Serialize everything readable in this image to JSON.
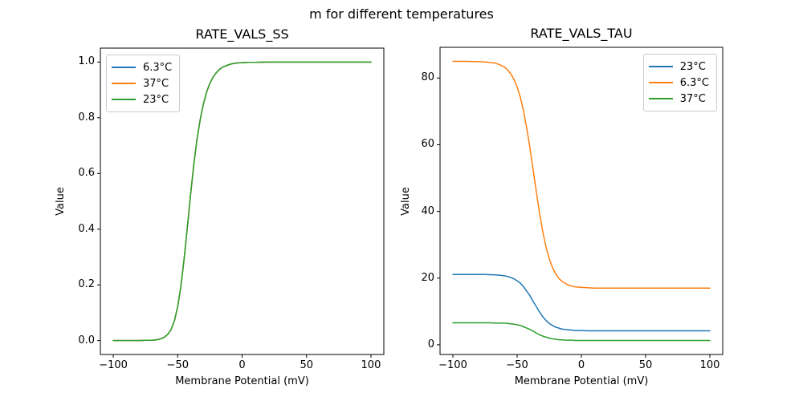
{
  "figure": {
    "suptitle": "m for different temperatures",
    "background": "#ffffff",
    "text_color": "#000000",
    "spine_color": "#000000"
  },
  "chart_data": [
    {
      "type": "line",
      "title": "RATE_VALS_SS",
      "xlabel": "Membrane Potential (mV)",
      "ylabel": "Value",
      "grid": false,
      "legend_position": "upper left",
      "xlim": [
        -110,
        110
      ],
      "ylim": [
        -0.05,
        1.05
      ],
      "xticks": [
        -100,
        -50,
        0,
        50,
        100
      ],
      "xtick_labels": [
        "−100",
        "−50",
        "0",
        "50",
        "100"
      ],
      "yticks": [
        0.0,
        0.2,
        0.4,
        0.6,
        0.8,
        1.0
      ],
      "ytick_labels": [
        "0.0",
        "0.2",
        "0.4",
        "0.6",
        "0.8",
        "1.0"
      ],
      "x": [
        -100,
        -90,
        -80,
        -75,
        -70,
        -67.5,
        -65,
        -62.5,
        -60,
        -57.5,
        -55,
        -52.5,
        -50,
        -47.5,
        -45,
        -42.5,
        -40,
        -37.5,
        -35,
        -32.5,
        -30,
        -27.5,
        -25,
        -22.5,
        -20,
        -17.5,
        -15,
        -12.5,
        -10,
        -7.5,
        -5,
        -2.5,
        0,
        5,
        10,
        20,
        40,
        60,
        80,
        100
      ],
      "series": [
        {
          "name": "6.3°C",
          "color": "#1f77b4",
          "values": [
            0,
            0,
            0,
            0.001,
            0.001,
            0.002,
            0.004,
            0.007,
            0.013,
            0.023,
            0.041,
            0.072,
            0.122,
            0.195,
            0.293,
            0.406,
            0.523,
            0.631,
            0.722,
            0.795,
            0.851,
            0.893,
            0.924,
            0.946,
            0.962,
            0.974,
            0.982,
            0.987,
            0.991,
            0.994,
            0.996,
            0.997,
            0.998,
            0.999,
            0.999,
            1,
            1,
            1,
            1,
            1
          ]
        },
        {
          "name": "37°C",
          "color": "#ff7f0e",
          "values": [
            0,
            0,
            0,
            0.001,
            0.001,
            0.002,
            0.004,
            0.007,
            0.013,
            0.023,
            0.041,
            0.072,
            0.122,
            0.195,
            0.293,
            0.406,
            0.523,
            0.631,
            0.722,
            0.795,
            0.851,
            0.893,
            0.924,
            0.946,
            0.962,
            0.974,
            0.982,
            0.987,
            0.991,
            0.994,
            0.996,
            0.997,
            0.998,
            0.999,
            0.999,
            1,
            1,
            1,
            1,
            1
          ]
        },
        {
          "name": "23°C",
          "color": "#2ca02c",
          "values": [
            0,
            0,
            0,
            0.001,
            0.001,
            0.002,
            0.004,
            0.007,
            0.013,
            0.023,
            0.041,
            0.072,
            0.122,
            0.195,
            0.293,
            0.406,
            0.523,
            0.631,
            0.722,
            0.795,
            0.851,
            0.893,
            0.924,
            0.946,
            0.962,
            0.974,
            0.982,
            0.987,
            0.991,
            0.994,
            0.996,
            0.997,
            0.998,
            0.999,
            0.999,
            1,
            1,
            1,
            1,
            1
          ]
        }
      ]
    },
    {
      "type": "line",
      "title": "RATE_VALS_TAU",
      "xlabel": "Membrane Potential (mV)",
      "ylabel": "Value",
      "grid": false,
      "legend_position": "upper right",
      "xlim": [
        -110,
        110
      ],
      "ylim": [
        -2.9,
        89.2
      ],
      "xticks": [
        -100,
        -50,
        0,
        50,
        100
      ],
      "xtick_labels": [
        "−100",
        "−50",
        "0",
        "50",
        "100"
      ],
      "yticks": [
        0,
        20,
        40,
        60,
        80
      ],
      "ytick_labels": [
        "0",
        "20",
        "40",
        "60",
        "80"
      ],
      "x": [
        -100,
        -90,
        -80,
        -75,
        -70,
        -67.5,
        -65,
        -62.5,
        -60,
        -57.5,
        -55,
        -52.5,
        -50,
        -47.5,
        -45,
        -42.5,
        -40,
        -37.5,
        -35,
        -32.5,
        -30,
        -27.5,
        -25,
        -22.5,
        -20,
        -17.5,
        -15,
        -12.5,
        -10,
        -7.5,
        -5,
        -2.5,
        0,
        5,
        10,
        20,
        40,
        60,
        80,
        100
      ],
      "series": [
        {
          "name": "23°C",
          "color": "#1f77b4",
          "values": [
            21.1,
            21.1,
            21.1,
            21.1,
            21,
            21,
            20.9,
            20.8,
            20.7,
            20.5,
            20.2,
            19.8,
            19.2,
            18.5,
            17.4,
            16.1,
            14.7,
            13,
            11.4,
            9.8,
            8.4,
            7.3,
            6.4,
            5.8,
            5.3,
            5,
            4.7,
            4.6,
            4.5,
            4.4,
            4.3,
            4.3,
            4.3,
            4.2,
            4.2,
            4.2,
            4.2,
            4.2,
            4.2,
            4.2
          ]
        },
        {
          "name": "6.3°C",
          "color": "#ff7f0e",
          "values": [
            85,
            85,
            84.9,
            84.8,
            84.6,
            84.5,
            84.2,
            83.8,
            83.3,
            82.5,
            81.3,
            79.6,
            77.3,
            74.2,
            70.1,
            64.9,
            59,
            52.3,
            45.7,
            39.3,
            33.8,
            29.3,
            25.8,
            23.2,
            21.3,
            19.9,
            19,
            18.4,
            17.9,
            17.6,
            17.4,
            17.3,
            17.2,
            17.1,
            17,
            17,
            17,
            17,
            17,
            17
          ]
        },
        {
          "name": "37°C",
          "color": "#2ca02c",
          "values": [
            6.6,
            6.6,
            6.6,
            6.6,
            6.6,
            6.5,
            6.5,
            6.5,
            6.5,
            6.4,
            6.3,
            6.2,
            6,
            5.8,
            5.4,
            5,
            4.6,
            4.1,
            3.5,
            3,
            2.6,
            2.3,
            2,
            1.8,
            1.7,
            1.5,
            1.5,
            1.4,
            1.4,
            1.4,
            1.3,
            1.3,
            1.3,
            1.3,
            1.3,
            1.3,
            1.3,
            1.3,
            1.3,
            1.3
          ]
        }
      ]
    }
  ]
}
